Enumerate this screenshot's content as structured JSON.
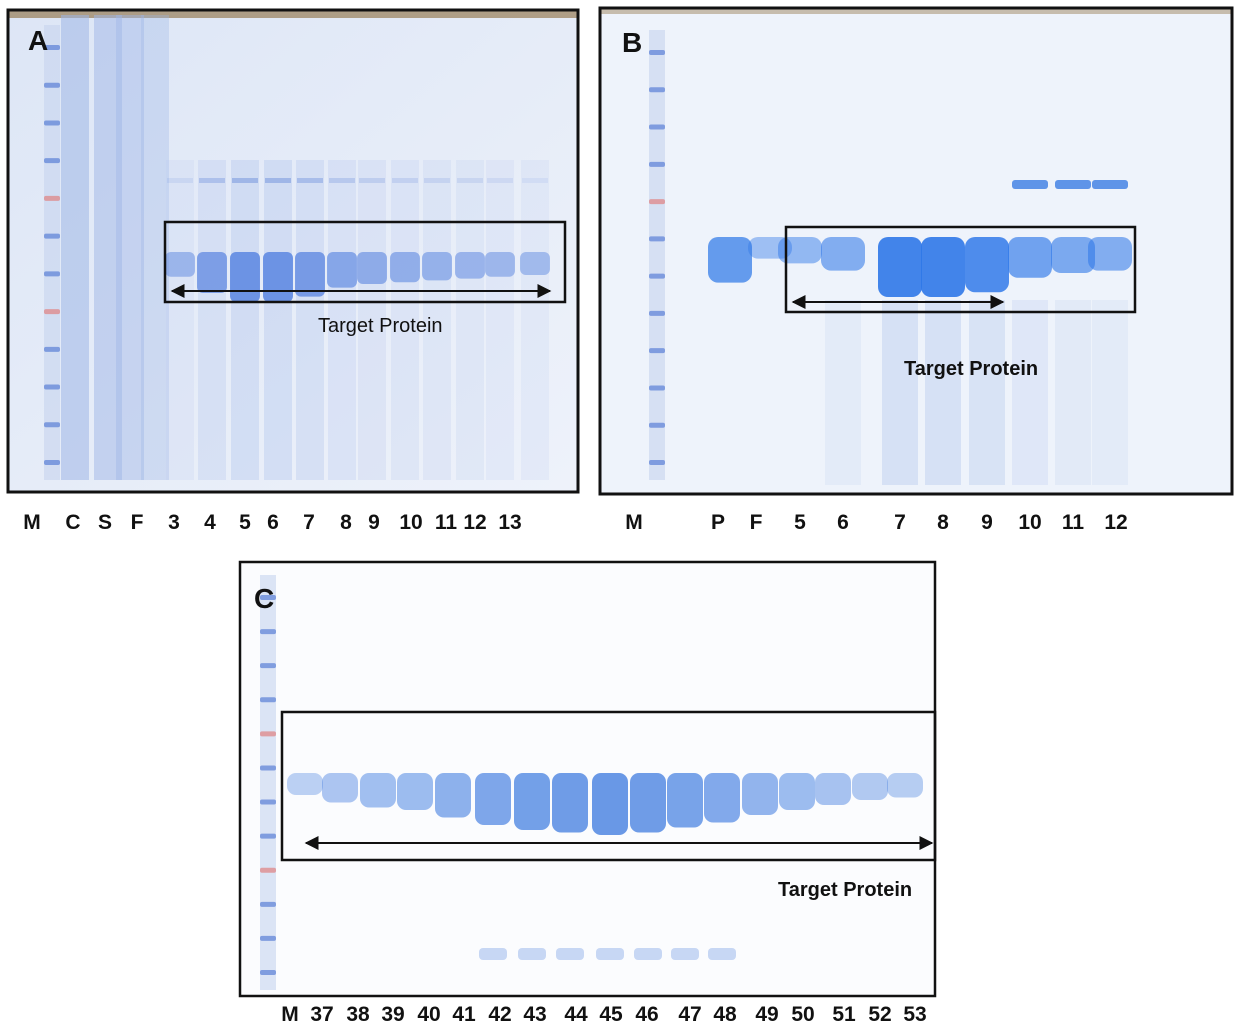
{
  "panels": [
    {
      "label": "A",
      "lanes": [
        "M",
        "C",
        "S",
        "F",
        "3",
        "4",
        "5",
        "6",
        "7",
        "8",
        "9",
        "10",
        "11",
        "12",
        "13"
      ],
      "annotation": "Target Protein"
    },
    {
      "label": "B",
      "lanes": [
        "M",
        "P",
        "F",
        "5",
        "6",
        "7",
        "8",
        "9",
        "10",
        "11",
        "12"
      ],
      "annotation": "Target Protein"
    },
    {
      "label": "C",
      "lanes": [
        "M",
        "37",
        "38",
        "39",
        "40",
        "41",
        "42",
        "43",
        "44",
        "45",
        "46",
        "47",
        "48",
        "49",
        "50",
        "51",
        "52",
        "53"
      ],
      "annotation": "Target Protein"
    }
  ]
}
